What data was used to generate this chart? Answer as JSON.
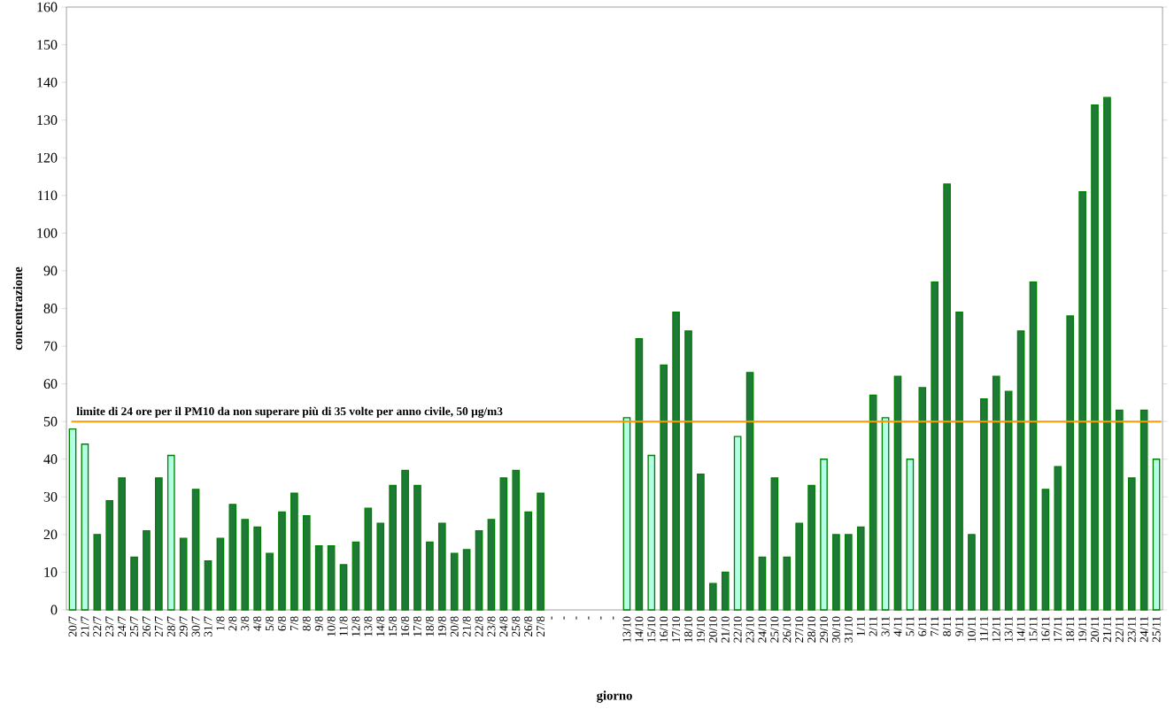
{
  "chart_data": {
    "type": "bar",
    "xlabel": "giorno",
    "ylabel": "concentrazione",
    "categories": [
      "20/7",
      "21/7",
      "22/7",
      "23/7",
      "24/7",
      "25/7",
      "26/7",
      "27/7",
      "28/7",
      "29/7",
      "30/7",
      "31/7",
      "1/8",
      "2/8",
      "3/8",
      "4/8",
      "5/8",
      "6/8",
      "7/8",
      "8/8",
      "9/8",
      "10/8",
      "11/8",
      "12/8",
      "13/8",
      "14/8",
      "15/8",
      "16/8",
      "17/8",
      "18/8",
      "19/8",
      "20/8",
      "21/8",
      "22/8",
      "23/8",
      "24/8",
      "25/8",
      "26/8",
      "27/8",
      "-",
      "-",
      "-",
      "-",
      "-",
      "-",
      "13/10",
      "14/10",
      "15/10",
      "16/10",
      "17/10",
      "18/10",
      "19/10",
      "20/10",
      "21/10",
      "22/10",
      "23/10",
      "24/10",
      "25/10",
      "26/10",
      "27/10",
      "28/10",
      "29/10",
      "30/10",
      "31/10",
      "1/11",
      "2/11",
      "3/11",
      "4/11",
      "5/11",
      "6/11",
      "7/11",
      "8/11",
      "9/11",
      "10/11",
      "11/11",
      "12/11",
      "13/11",
      "14/11",
      "15/11",
      "16/11",
      "17/11",
      "18/11",
      "19/11",
      "20/11",
      "21/11",
      "22/11",
      "23/11",
      "24/11",
      "25/11"
    ],
    "values": [
      48,
      44,
      20,
      29,
      35,
      14,
      21,
      35,
      41,
      19,
      32,
      13,
      19,
      28,
      24,
      22,
      15,
      26,
      31,
      25,
      17,
      17,
      12,
      18,
      27,
      23,
      33,
      37,
      33,
      18,
      23,
      15,
      16,
      21,
      24,
      35,
      37,
      26,
      31,
      null,
      null,
      null,
      null,
      null,
      null,
      51,
      72,
      41,
      65,
      79,
      74,
      36,
      7,
      10,
      46,
      63,
      14,
      35,
      14,
      23,
      33,
      40,
      20,
      20,
      22,
      57,
      51,
      62,
      40,
      59,
      87,
      113,
      79,
      20,
      56,
      62,
      58,
      74,
      87,
      32,
      38,
      78,
      111,
      134,
      136,
      53,
      35,
      53,
      40
    ],
    "colors": [
      "#b3ffe6",
      "#b3ffe6",
      "#1f7a3a",
      "#1f7a3a",
      "#1f7a3a",
      "#1f7a3a",
      "#1f7a3a",
      "#1f7a3a",
      "#b3ffe6",
      "#1f7a3a",
      "#1f7a3a",
      "#1f7a3a",
      "#1f7a3a",
      "#1f7a3a",
      "#1f7a3a",
      "#1f7a3a",
      "#1f7a3a",
      "#1f7a3a",
      "#1f7a3a",
      "#1f7a3a",
      "#1f7a3a",
      "#1f7a3a",
      "#1f7a3a",
      "#1f7a3a",
      "#1f7a3a",
      "#1f7a3a",
      "#1f7a3a",
      "#1f7a3a",
      "#1f7a3a",
      "#1f7a3a",
      "#1f7a3a",
      "#1f7a3a",
      "#1f7a3a",
      "#1f7a3a",
      "#1f7a3a",
      "#1f7a3a",
      "#1f7a3a",
      "#1f7a3a",
      "#1f7a3a",
      null,
      null,
      null,
      null,
      null,
      null,
      "#b3ffe6",
      "#1f7a3a",
      "#b3ffe6",
      "#1f7a3a",
      "#1f7a3a",
      "#1f7a3a",
      "#1f7a3a",
      "#1f7a3a",
      "#1f7a3a",
      "#b3ffe6",
      "#1f7a3a",
      "#1f7a3a",
      "#1f7a3a",
      "#1f7a3a",
      "#1f7a3a",
      "#1f7a3a",
      "#b3ffe6",
      "#1f7a3a",
      "#1f7a3a",
      "#1f7a3a",
      "#1f7a3a",
      "#b3ffe6",
      "#1f7a3a",
      "#b3ffe6",
      "#1f7a3a",
      "#1f7a3a",
      "#1f7a3a",
      "#1f7a3a",
      "#1f7a3a",
      "#1f7a3a",
      "#1f7a3a",
      "#1f7a3a",
      "#1f7a3a",
      "#1f7a3a",
      "#1f7a3a",
      "#1f7a3a",
      "#1f7a3a",
      "#1f7a3a",
      "#1f7a3a",
      "#1f7a3a",
      "#1f7a3a",
      "#1f7a3a",
      "#1f7a3a",
      "#b3ffe6"
    ],
    "ylim": [
      0,
      160
    ],
    "yticks": [
      0,
      10,
      20,
      30,
      40,
      50,
      60,
      70,
      80,
      90,
      100,
      110,
      120,
      130,
      140,
      150,
      160
    ],
    "ref_lines": [
      {
        "axis": "y",
        "value": 50,
        "label": "limite di 24 ore per il PM10 da non superare più di 35 volte per anno civile, 50 µg/m3",
        "color": "#ff9900"
      }
    ]
  }
}
